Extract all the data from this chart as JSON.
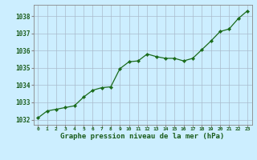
{
  "x": [
    0,
    1,
    2,
    3,
    4,
    5,
    6,
    7,
    8,
    9,
    10,
    11,
    12,
    13,
    14,
    15,
    16,
    17,
    18,
    19,
    20,
    21,
    22,
    23
  ],
  "y": [
    1032.1,
    1032.5,
    1032.6,
    1032.7,
    1032.8,
    1033.3,
    1033.7,
    1033.85,
    1033.9,
    1034.95,
    1035.35,
    1035.4,
    1035.8,
    1035.65,
    1035.55,
    1035.55,
    1035.4,
    1035.55,
    1036.05,
    1036.55,
    1037.1,
    1037.25,
    1037.85,
    1038.3
  ],
  "line_color": "#1a6b1a",
  "marker": "D",
  "marker_size": 2.2,
  "linewidth": 0.9,
  "bg_color": "#cceeff",
  "grid_color": "#aabbcc",
  "text_color": "#1a5c1a",
  "xlabel": "Graphe pression niveau de la mer (hPa)",
  "xlabel_fontsize": 6.5,
  "ylabel_ticks": [
    1032,
    1033,
    1034,
    1035,
    1036,
    1037,
    1038
  ],
  "xtick_labels": [
    "0",
    "1",
    "2",
    "3",
    "4",
    "5",
    "6",
    "7",
    "8",
    "9",
    "10",
    "11",
    "12",
    "13",
    "14",
    "15",
    "16",
    "17",
    "18",
    "19",
    "20",
    "21",
    "22",
    "23"
  ],
  "ylim": [
    1031.7,
    1038.65
  ],
  "xlim": [
    -0.5,
    23.5
  ]
}
